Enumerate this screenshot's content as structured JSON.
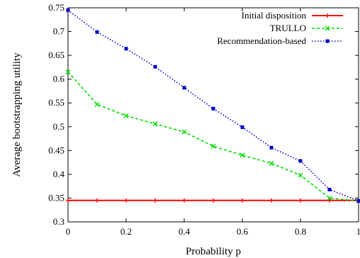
{
  "chart_data": {
    "type": "line",
    "xlabel": "Probability p",
    "ylabel": "Average bootstrapping utility",
    "xlim": [
      0,
      1
    ],
    "ylim": [
      0.3,
      0.75
    ],
    "x_ticks": [
      0,
      0.2,
      0.4,
      0.6,
      0.8,
      1
    ],
    "x_tick_labels": [
      "0",
      "0.2",
      "0.4",
      "0.6",
      "0.8",
      "1"
    ],
    "y_ticks": [
      0.3,
      0.35,
      0.4,
      0.45,
      0.5,
      0.55,
      0.6,
      0.65,
      0.7,
      0.75
    ],
    "y_tick_labels": [
      "0.3",
      "0.35",
      "0.4",
      "0.45",
      "0.5",
      "0.55",
      "0.6",
      "0.65",
      "0.7",
      "0.75"
    ],
    "legend_position": "top-right",
    "grid": false,
    "x": [
      0,
      0.1,
      0.2,
      0.3,
      0.4,
      0.5,
      0.6,
      0.7,
      0.8,
      0.9,
      1
    ],
    "series": [
      {
        "name": "Initial disposition",
        "color": "#ff0000",
        "line_style": "solid",
        "marker": "cross",
        "values": [
          0.345,
          0.345,
          0.345,
          0.345,
          0.345,
          0.345,
          0.345,
          0.345,
          0.345,
          0.345,
          0.345
        ]
      },
      {
        "name": "TRULLO",
        "color": "#00dd00",
        "line_style": "dashed",
        "marker": "x",
        "values": [
          0.615,
          0.547,
          0.523,
          0.506,
          0.489,
          0.459,
          0.44,
          0.423,
          0.398,
          0.35,
          0.344
        ]
      },
      {
        "name": "Recommendation-based",
        "color": "#0000cc",
        "line_style": "dotted",
        "marker": "square",
        "values": [
          0.745,
          0.699,
          0.664,
          0.626,
          0.582,
          0.538,
          0.499,
          0.456,
          0.428,
          0.368,
          0.344
        ]
      }
    ]
  }
}
